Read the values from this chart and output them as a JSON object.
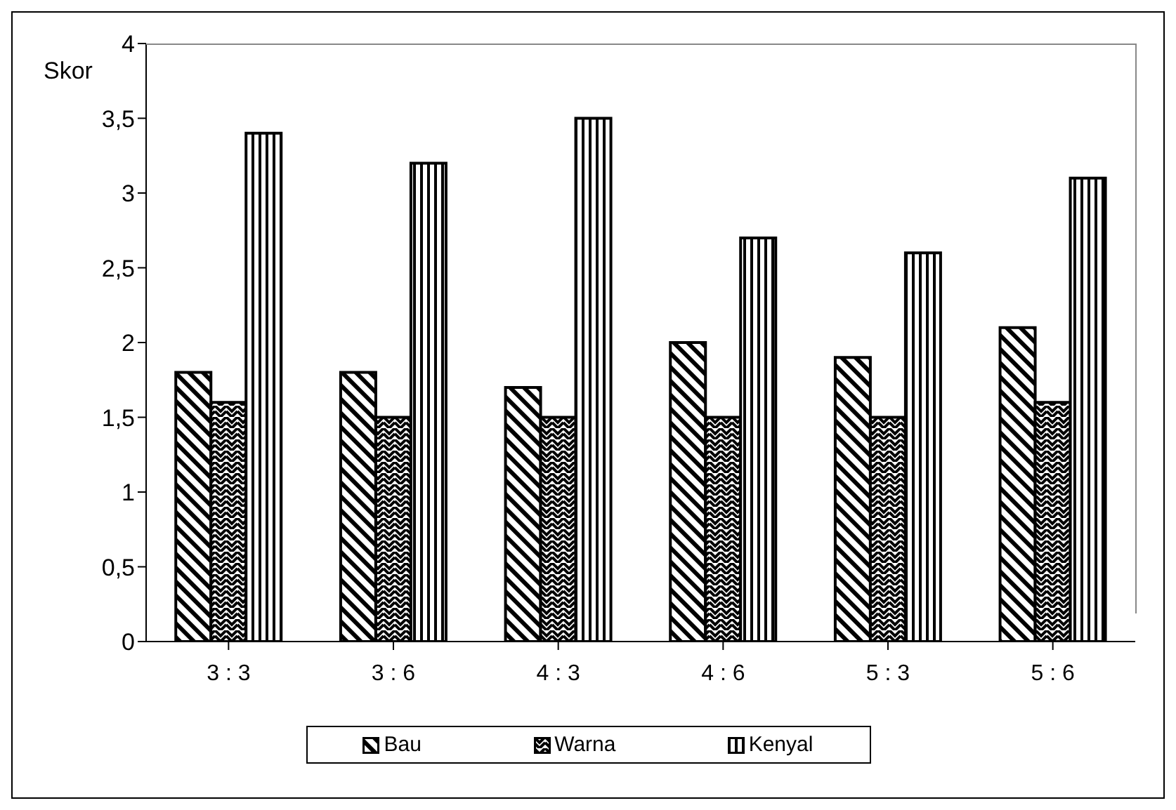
{
  "chart_data": {
    "type": "bar",
    "ylabel": "Skor",
    "categories": [
      "3 : 3",
      "3 : 6",
      "4 : 3",
      "4 : 6",
      "5 : 3",
      "5 : 6"
    ],
    "series": [
      {
        "name": "Bau",
        "color": "#000000",
        "values": [
          1.8,
          1.8,
          1.7,
          2.0,
          1.9,
          2.1
        ]
      },
      {
        "name": "Warna",
        "color": "#000000",
        "values": [
          1.6,
          1.5,
          1.5,
          1.5,
          1.5,
          1.6
        ]
      },
      {
        "name": "Kenyal",
        "color": "#000000",
        "values": [
          3.4,
          3.2,
          3.5,
          2.7,
          2.6,
          3.1
        ]
      }
    ],
    "ylim": [
      0,
      4
    ],
    "yticks": [
      0,
      {
        "value": 0.5,
        "label": "0,5"
      },
      1,
      {
        "value": 1.5,
        "label": "1,5"
      },
      2,
      {
        "value": 2.5,
        "label": "2,5"
      },
      3,
      {
        "value": 3.5,
        "label": "3,5"
      },
      4
    ],
    "grid": false,
    "legend": "bottom"
  }
}
